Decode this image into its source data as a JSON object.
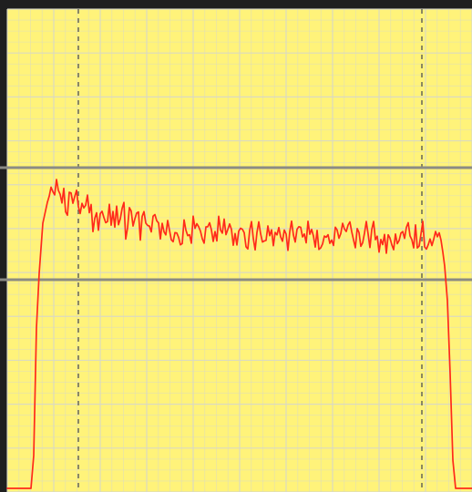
{
  "scope": {
    "colors": {
      "frame": "#1f1f1f",
      "background": "#fff37a",
      "grid": "#d8d8c8",
      "cursor_vertical": "#6e6e5a",
      "cursor_horizontal": "#8b8b84",
      "trace": "#ff2a1a"
    },
    "grid": {
      "major_columns": 10,
      "major_rows": 11,
      "visible": true
    },
    "cursors": {
      "vertical_count": 2,
      "horizontal_count": 2
    },
    "trace": {
      "name": "",
      "shape": "pulse-with-noisy-plateau"
    }
  }
}
